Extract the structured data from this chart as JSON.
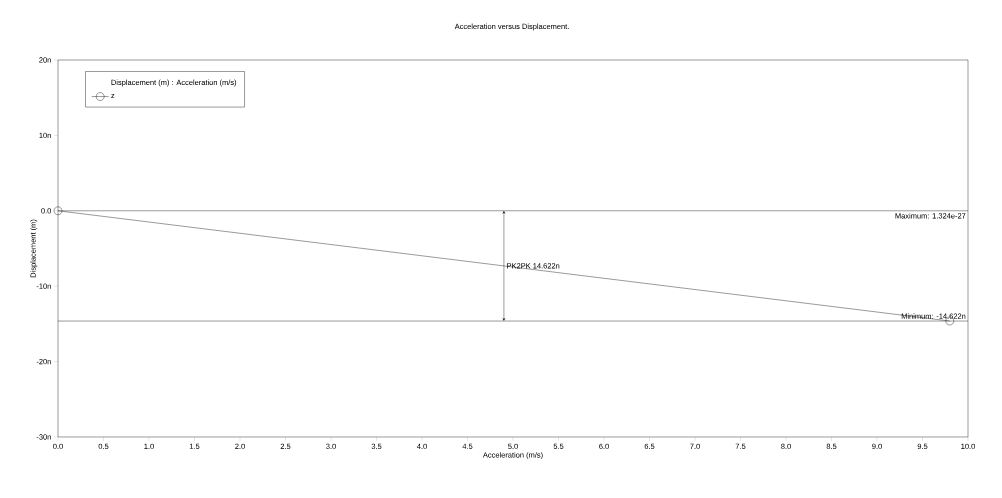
{
  "chart_data": {
    "type": "line",
    "title": "Acceleration versus Displacement.",
    "xlabel": "Acceleration (m/s)",
    "ylabel": "Displacement (m)",
    "legend_title": "Displacement (m) : Acceleration (m/s)",
    "x": [
      0,
      9.8
    ],
    "series": [
      {
        "name": "z",
        "color": "#000000",
        "values": [
          0,
          -14.622
        ]
      }
    ],
    "xlim": [
      0,
      10
    ],
    "xticks": [
      {
        "value": 0,
        "label": "0.0"
      },
      {
        "value": 0.5,
        "label": "0.5"
      },
      {
        "value": 1,
        "label": "1.0"
      },
      {
        "value": 1.5,
        "label": "1.5"
      },
      {
        "value": 2,
        "label": "2.0"
      },
      {
        "value": 2.5,
        "label": "2.5"
      },
      {
        "value": 3,
        "label": "3.0"
      },
      {
        "value": 3.5,
        "label": "3.5"
      },
      {
        "value": 4,
        "label": "4.0"
      },
      {
        "value": 4.5,
        "label": "4.5"
      },
      {
        "value": 5,
        "label": "5.0"
      },
      {
        "value": 5.5,
        "label": "5.5"
      },
      {
        "value": 6,
        "label": "6.0"
      },
      {
        "value": 6.5,
        "label": "6.5"
      },
      {
        "value": 7,
        "label": "7.0"
      },
      {
        "value": 7.5,
        "label": "7.5"
      },
      {
        "value": 8,
        "label": "8.0"
      },
      {
        "value": 8.5,
        "label": "8.5"
      },
      {
        "value": 9,
        "label": "9.0"
      },
      {
        "value": 9.5,
        "label": "9.5"
      },
      {
        "value": 10,
        "label": "10.0"
      }
    ],
    "ylim": [
      -30,
      20
    ],
    "yticks": [
      {
        "value": 20,
        "label": "20n"
      },
      {
        "value": 10,
        "label": "10n"
      },
      {
        "value": 0,
        "label": "0.0"
      },
      {
        "value": -10,
        "label": "-10n"
      },
      {
        "value": -20,
        "label": "-20n"
      },
      {
        "value": -30,
        "label": "-30n"
      }
    ],
    "ref_lines": [
      {
        "axis": "y",
        "value": 0
      },
      {
        "axis": "y",
        "value": -14.622,
        "label": "Minimum: -14.622n"
      }
    ],
    "annotations": [
      {
        "text": "PK2PK 14.622n",
        "x": 4.9,
        "y": -7.3
      },
      "Maximum: 1.324e-27"
    ],
    "marker": "circle",
    "line_style": "solid",
    "legend": "top left",
    "grid": false
  }
}
